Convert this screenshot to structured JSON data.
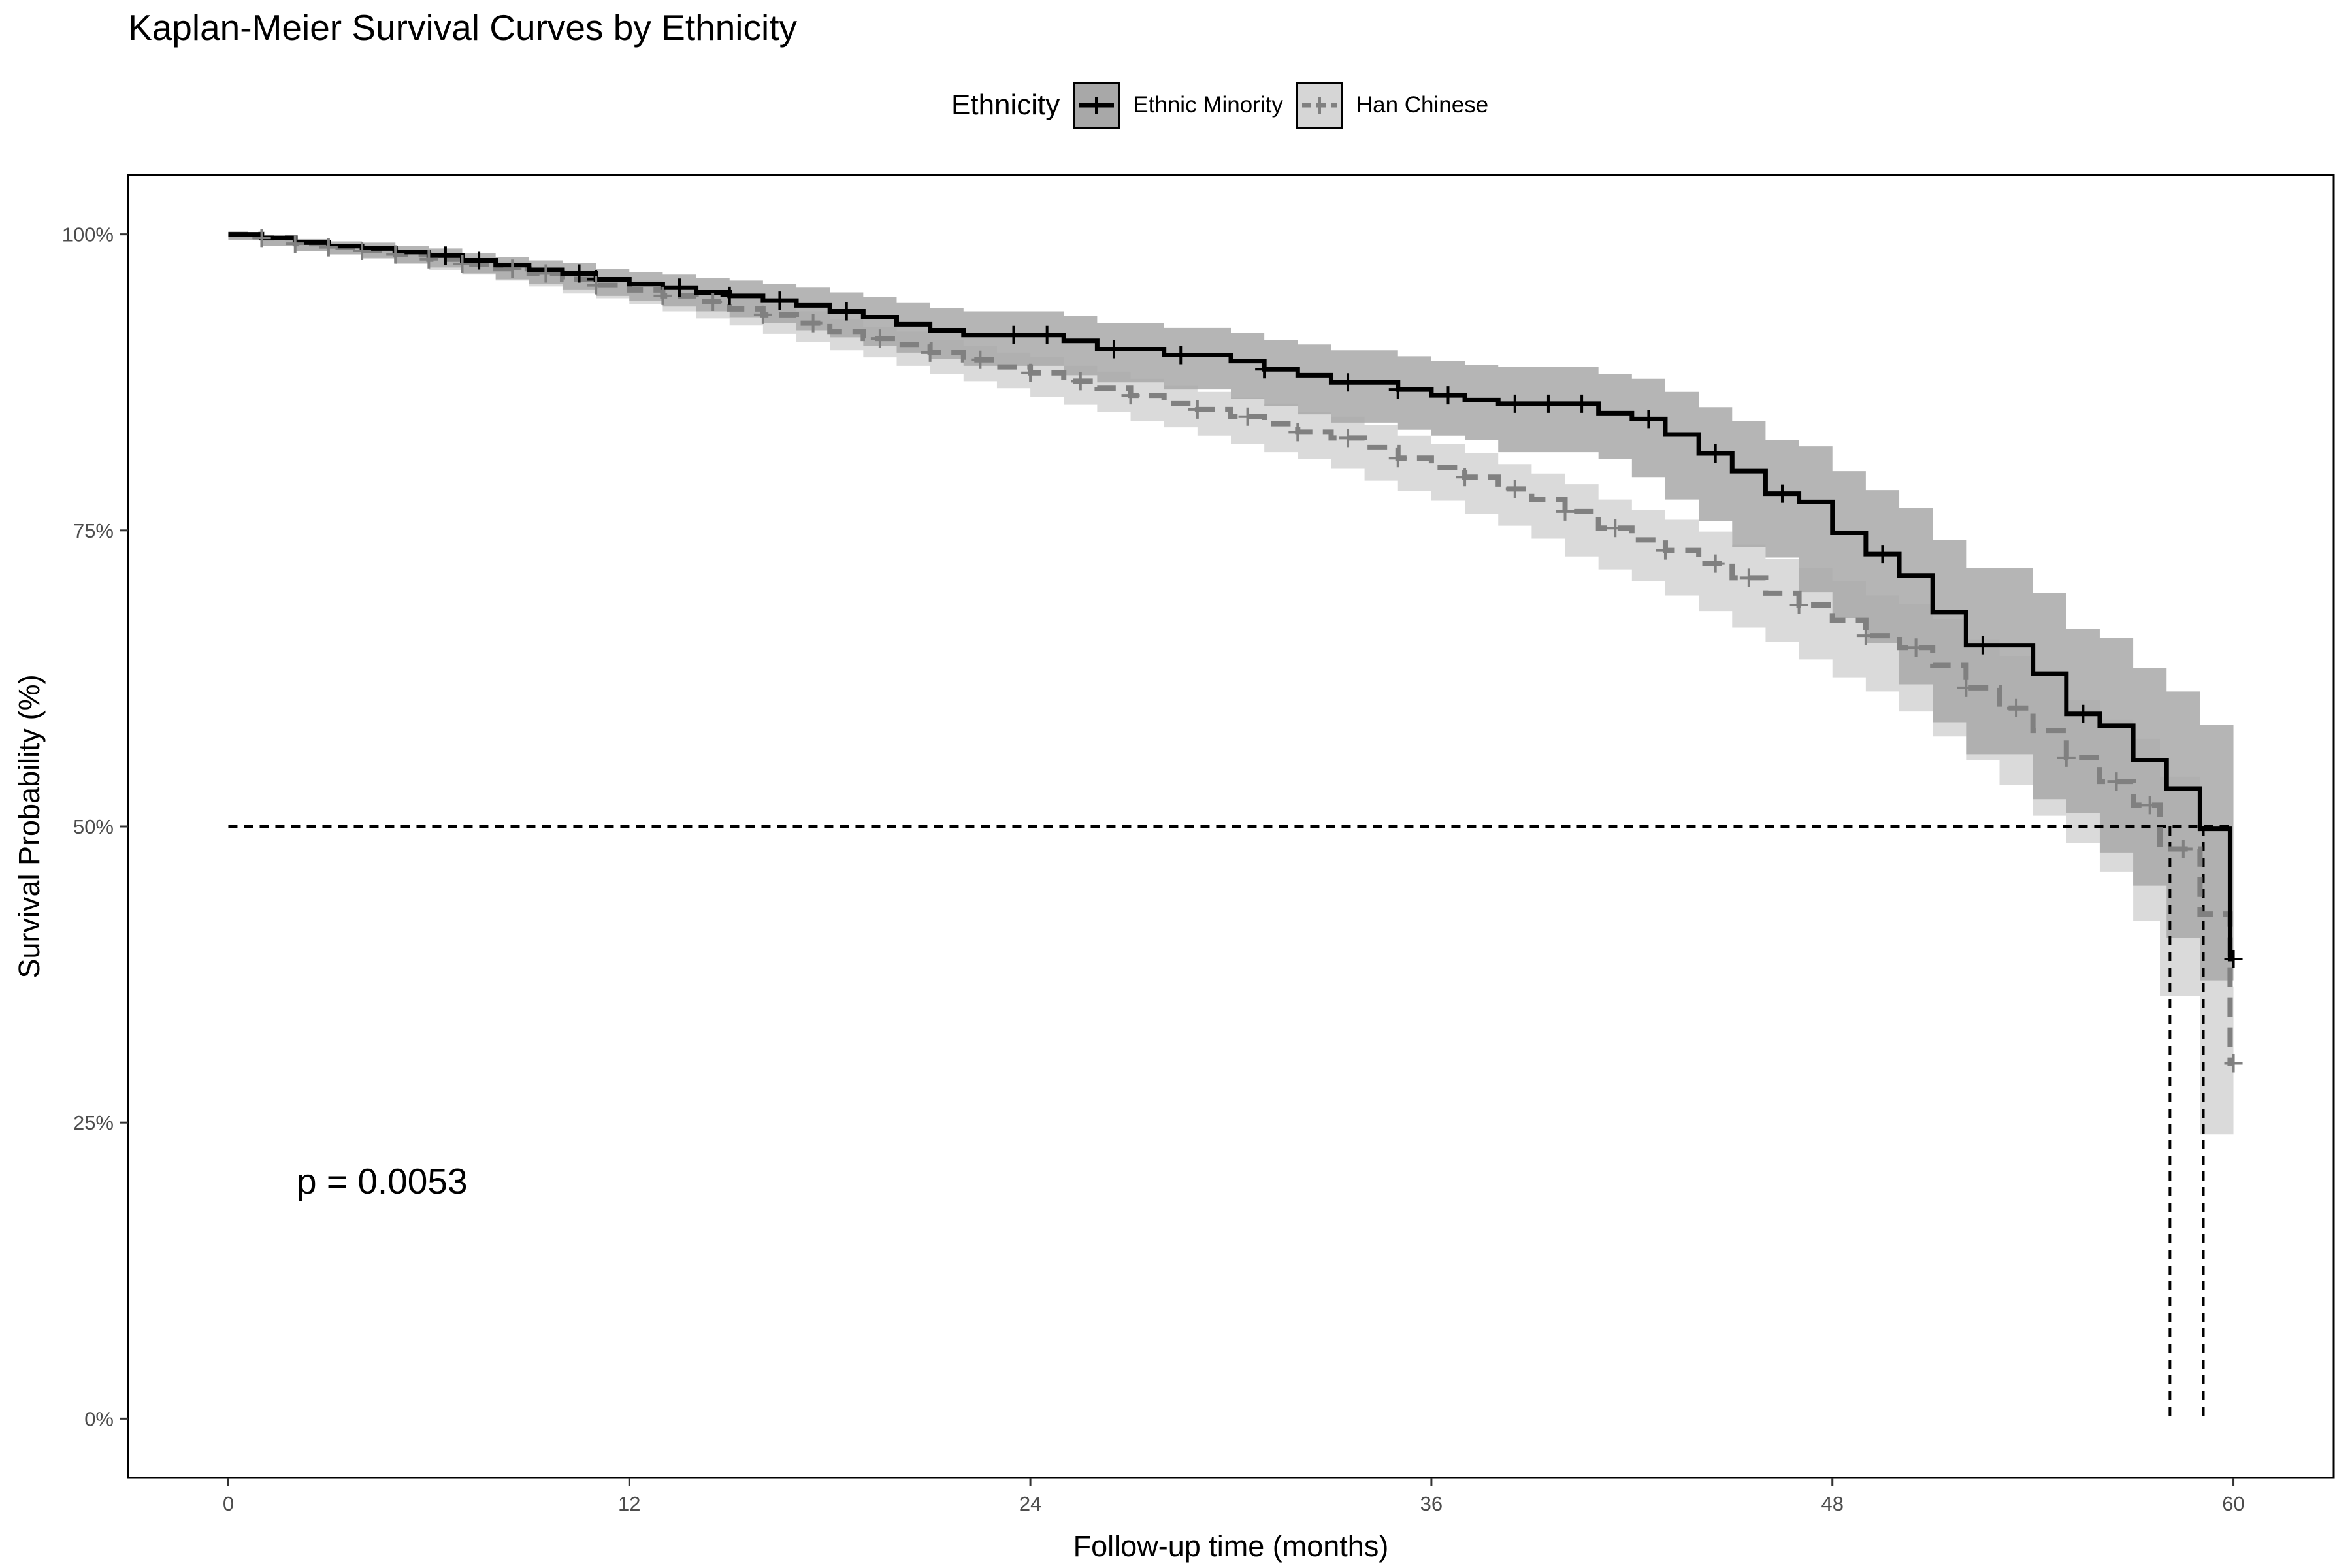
{
  "chart_data": {
    "type": "line",
    "title": "Kaplan-Meier Survival Curves by Ethnicity",
    "xlabel": "Follow-up time (months)",
    "ylabel": "Survival Probability (%)",
    "xlim": [
      -3,
      63
    ],
    "ylim": [
      -0.05,
      1.05
    ],
    "x_ticks": [
      0,
      12,
      24,
      36,
      48,
      60
    ],
    "x_tick_labels": [
      "0",
      "12",
      "24",
      "36",
      "48",
      "60"
    ],
    "y_ticks": [
      0,
      0.25,
      0.5,
      0.75,
      1.0
    ],
    "y_tick_labels": [
      "0%",
      "25%",
      "50%",
      "75%",
      "100%"
    ],
    "grid": false,
    "legend": {
      "title": "Ethnicity",
      "position": "top",
      "entries": [
        "Ethnic Minority",
        "Han Chinese"
      ]
    },
    "annotation": {
      "text": "p = 0.0053",
      "x": 4,
      "y": 0.2
    },
    "median_line": {
      "y": 0.5,
      "x_start": 0,
      "x_end": 60,
      "median_times": [
        58.1,
        59.1
      ]
    },
    "series": [
      {
        "name": "Ethnic Minority",
        "color": "#000000",
        "band_color": "#a8a8a8",
        "line_style": "solid",
        "steps": [
          [
            0,
            1.0
          ],
          [
            1,
            0.997
          ],
          [
            2,
            0.993
          ],
          [
            3,
            0.99
          ],
          [
            4,
            0.988
          ],
          [
            5,
            0.985
          ],
          [
            6,
            0.982
          ],
          [
            7,
            0.978
          ],
          [
            8,
            0.974
          ],
          [
            9,
            0.97
          ],
          [
            10,
            0.967
          ],
          [
            11,
            0.962
          ],
          [
            12,
            0.958
          ],
          [
            13,
            0.955
          ],
          [
            14,
            0.951
          ],
          [
            15,
            0.948
          ],
          [
            16,
            0.944
          ],
          [
            17,
            0.94
          ],
          [
            18,
            0.935
          ],
          [
            19,
            0.93
          ],
          [
            20,
            0.924
          ],
          [
            21,
            0.919
          ],
          [
            22,
            0.915
          ],
          [
            25,
            0.91
          ],
          [
            26,
            0.903
          ],
          [
            28,
            0.898
          ],
          [
            30,
            0.893
          ],
          [
            31,
            0.886
          ],
          [
            32,
            0.881
          ],
          [
            33,
            0.875
          ],
          [
            35,
            0.869
          ],
          [
            36,
            0.864
          ],
          [
            37,
            0.86
          ],
          [
            38,
            0.857
          ],
          [
            41,
            0.849
          ],
          [
            42,
            0.844
          ],
          [
            43,
            0.831
          ],
          [
            44,
            0.815
          ],
          [
            45,
            0.8
          ],
          [
            46,
            0.781
          ],
          [
            47,
            0.774
          ],
          [
            48,
            0.748
          ],
          [
            49,
            0.73
          ],
          [
            50,
            0.712
          ],
          [
            51,
            0.681
          ],
          [
            52,
            0.653
          ],
          [
            54,
            0.629
          ],
          [
            55,
            0.595
          ],
          [
            56,
            0.585
          ],
          [
            57,
            0.556
          ],
          [
            58,
            0.532
          ],
          [
            59,
            0.498
          ],
          [
            59.9,
            0.388
          ],
          [
            60,
            0.388
          ]
        ],
        "lower": [
          1.0,
          0.995,
          0.99,
          0.986,
          0.983,
          0.98,
          0.976,
          0.972,
          0.967,
          0.962,
          0.958,
          0.953,
          0.948,
          0.944,
          0.939,
          0.935,
          0.93,
          0.925,
          0.919,
          0.913,
          0.906,
          0.9,
          0.895,
          0.889,
          0.881,
          0.875,
          0.869,
          0.861,
          0.855,
          0.848,
          0.841,
          0.835,
          0.83,
          0.826,
          0.816,
          0.81,
          0.795,
          0.776,
          0.758,
          0.736,
          0.727,
          0.698,
          0.676,
          0.655,
          0.62,
          0.588,
          0.561,
          0.523,
          0.511,
          0.478,
          0.45,
          0.406,
          0.37,
          0.37
        ],
        "upper": [
          1.0,
          0.999,
          0.996,
          0.994,
          0.993,
          0.99,
          0.988,
          0.984,
          0.981,
          0.978,
          0.976,
          0.971,
          0.968,
          0.966,
          0.963,
          0.961,
          0.958,
          0.955,
          0.951,
          0.947,
          0.942,
          0.938,
          0.935,
          0.931,
          0.925,
          0.921,
          0.917,
          0.911,
          0.907,
          0.902,
          0.897,
          0.893,
          0.89,
          0.888,
          0.882,
          0.878,
          0.867,
          0.854,
          0.842,
          0.826,
          0.821,
          0.8,
          0.784,
          0.769,
          0.742,
          0.718,
          0.697,
          0.667,
          0.659,
          0.634,
          0.614,
          0.586,
          0.586,
          0.586
        ],
        "censor_x": [
          1,
          6.5,
          7.5,
          10.5,
          11,
          13.5,
          15,
          16.5,
          18.5,
          23.5,
          24.5,
          26.5,
          28.5,
          31,
          33.5,
          35,
          36.5,
          38.5,
          39.5,
          40.5,
          42.5,
          44.5,
          46.5,
          49.5,
          52.5,
          55.5,
          60
        ]
      },
      {
        "name": "Han Chinese",
        "color": "#808080",
        "band_color": "#d6d6d6",
        "line_style": "dashed",
        "steps": [
          [
            0,
            1.0
          ],
          [
            1,
            0.997
          ],
          [
            2,
            0.992
          ],
          [
            3,
            0.989
          ],
          [
            4,
            0.986
          ],
          [
            5,
            0.983
          ],
          [
            6,
            0.979
          ],
          [
            7,
            0.975
          ],
          [
            8,
            0.971
          ],
          [
            9,
            0.967
          ],
          [
            10,
            0.962
          ],
          [
            11,
            0.957
          ],
          [
            12,
            0.953
          ],
          [
            13,
            0.948
          ],
          [
            14,
            0.943
          ],
          [
            15,
            0.937
          ],
          [
            16,
            0.932
          ],
          [
            17,
            0.925
          ],
          [
            18,
            0.918
          ],
          [
            19,
            0.912
          ],
          [
            20,
            0.907
          ],
          [
            21,
            0.9
          ],
          [
            22,
            0.894
          ],
          [
            23,
            0.888
          ],
          [
            24,
            0.883
          ],
          [
            25,
            0.876
          ],
          [
            26,
            0.87
          ],
          [
            27,
            0.864
          ],
          [
            28,
            0.857
          ],
          [
            29,
            0.852
          ],
          [
            30,
            0.846
          ],
          [
            31,
            0.84
          ],
          [
            32,
            0.833
          ],
          [
            33,
            0.828
          ],
          [
            34,
            0.82
          ],
          [
            35,
            0.811
          ],
          [
            36,
            0.803
          ],
          [
            37,
            0.795
          ],
          [
            38,
            0.785
          ],
          [
            39,
            0.776
          ],
          [
            40,
            0.766
          ],
          [
            41,
            0.752
          ],
          [
            42,
            0.742
          ],
          [
            43,
            0.733
          ],
          [
            44,
            0.722
          ],
          [
            45,
            0.71
          ],
          [
            46,
            0.697
          ],
          [
            47,
            0.687
          ],
          [
            48,
            0.674
          ],
          [
            49,
            0.661
          ],
          [
            50,
            0.651
          ],
          [
            51,
            0.636
          ],
          [
            52,
            0.617
          ],
          [
            53,
            0.6
          ],
          [
            54,
            0.581
          ],
          [
            55,
            0.558
          ],
          [
            56,
            0.538
          ],
          [
            57,
            0.518
          ],
          [
            57.8,
            0.481
          ],
          [
            59,
            0.426
          ],
          [
            59.9,
            0.3
          ],
          [
            60,
            0.3
          ]
        ],
        "lower": [
          1.0,
          0.996,
          0.99,
          0.986,
          0.983,
          0.979,
          0.975,
          0.97,
          0.966,
          0.961,
          0.956,
          0.95,
          0.946,
          0.941,
          0.935,
          0.929,
          0.923,
          0.916,
          0.909,
          0.902,
          0.896,
          0.889,
          0.882,
          0.876,
          0.87,
          0.863,
          0.856,
          0.85,
          0.842,
          0.837,
          0.83,
          0.823,
          0.816,
          0.81,
          0.802,
          0.792,
          0.783,
          0.775,
          0.764,
          0.754,
          0.743,
          0.728,
          0.717,
          0.707,
          0.695,
          0.682,
          0.668,
          0.656,
          0.641,
          0.626,
          0.614,
          0.597,
          0.576,
          0.556,
          0.535,
          0.509,
          0.486,
          0.462,
          0.42,
          0.357,
          0.24,
          0.24
        ],
        "upper": [
          1.0,
          0.998,
          0.994,
          0.992,
          0.99,
          0.987,
          0.984,
          0.98,
          0.977,
          0.973,
          0.969,
          0.964,
          0.961,
          0.956,
          0.951,
          0.946,
          0.941,
          0.935,
          0.928,
          0.922,
          0.918,
          0.911,
          0.906,
          0.9,
          0.896,
          0.889,
          0.884,
          0.878,
          0.872,
          0.867,
          0.862,
          0.857,
          0.85,
          0.846,
          0.839,
          0.83,
          0.823,
          0.815,
          0.806,
          0.798,
          0.789,
          0.776,
          0.767,
          0.759,
          0.749,
          0.738,
          0.726,
          0.718,
          0.707,
          0.695,
          0.688,
          0.675,
          0.658,
          0.644,
          0.627,
          0.607,
          0.59,
          0.574,
          0.542,
          0.495,
          0.365,
          0.365
        ],
        "censor_x": [
          1,
          2,
          3,
          4,
          5,
          6,
          7,
          8.5,
          9.5,
          11,
          13,
          14.5,
          16,
          17.5,
          19.5,
          21,
          22.5,
          24,
          25.5,
          27,
          29,
          30.5,
          32,
          33.5,
          35,
          37,
          38.5,
          40,
          41.5,
          43,
          44.5,
          45.5,
          47,
          49,
          50.5,
          52,
          53.5,
          55,
          56.5,
          57.5,
          58.5,
          60
        ]
      }
    ]
  }
}
